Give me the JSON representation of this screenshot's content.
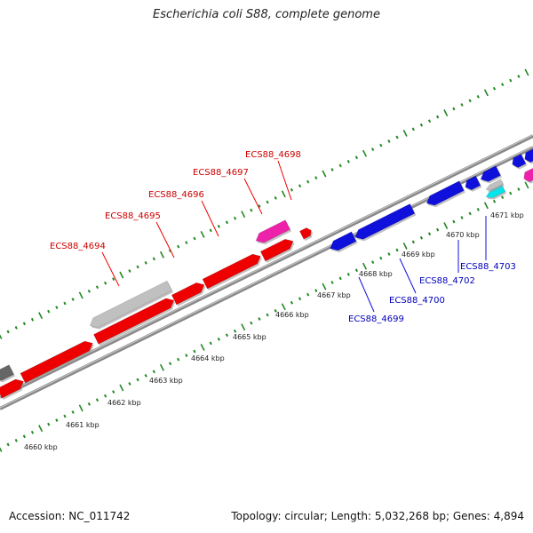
{
  "title": "Escherichia coli S88, complete genome",
  "footer": {
    "accession": "Accession: NC_011742",
    "summary": "Topology: circular; Length: 5,032,268 bp; Genes: 4,894"
  },
  "colors": {
    "forward_gene": "#ee0000",
    "reverse_gene": "#1010dd",
    "pseudo_gene": "#c0c0c0",
    "rna_gene": "#ee22aa",
    "other_gene": "#00e5ee",
    "backbone": "#888888",
    "tick": "#228822",
    "forward_label": "#cc0000",
    "reverse_label": "#0000bb"
  },
  "tick_labels": [
    "4660 kbp",
    "4661 kbp",
    "4662 kbp",
    "4663 kbp",
    "4664 kbp",
    "4665 kbp",
    "4666 kbp",
    "4667 kbp",
    "4668 kbp",
    "4669 kbp",
    "4670 kbp",
    "4671 kbp"
  ],
  "forward_labels": [
    "ECS88_4694",
    "ECS88_4695",
    "ECS88_4696",
    "ECS88_4697",
    "ECS88_4698"
  ],
  "reverse_labels": [
    "ECS88_4699",
    "ECS88_4700",
    "ECS88_4702",
    "ECS88_4703"
  ]
}
